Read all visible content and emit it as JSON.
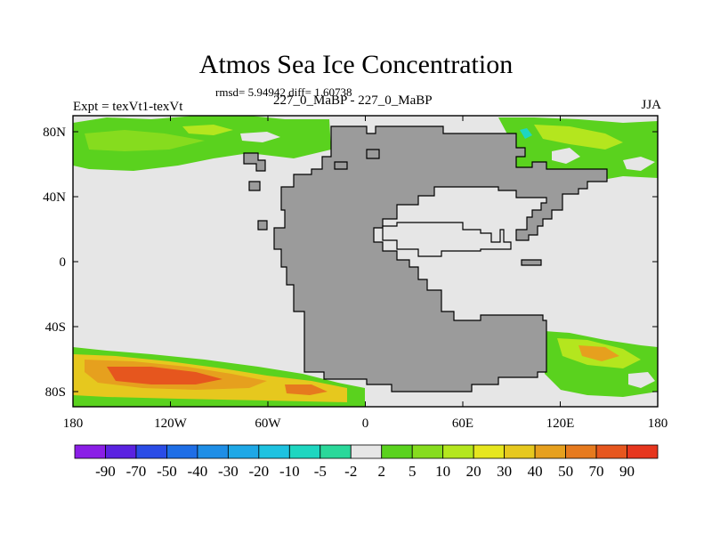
{
  "header": {
    "title": "Atmos Sea Ice Concentration",
    "stats": "rmsd= 5.94942 diff= 1.60738",
    "expt": "Expt = texVt1-texVt",
    "cases": "227_0_MaBP - 227_0_MaBP",
    "season": "JJA"
  },
  "axes": {
    "x_ticks": [
      "180",
      "120W",
      "60W",
      "0",
      "60E",
      "120E",
      "180"
    ],
    "y_ticks": [
      "80N",
      "40N",
      "0",
      "40S",
      "80S"
    ]
  },
  "colorbar": {
    "labels": [
      "-90",
      "-70",
      "-50",
      "-40",
      "-30",
      "-20",
      "-10",
      "-5",
      "-2",
      "2",
      "5",
      "10",
      "20",
      "30",
      "40",
      "50",
      "70",
      "90"
    ],
    "colors": [
      "#8a1ee6",
      "#5a22e0",
      "#2a4ce6",
      "#1e6ee6",
      "#1e8ee6",
      "#1ea8e6",
      "#1ec2e0",
      "#1ed6c0",
      "#2ad89a",
      "#e6e6e6",
      "#5ad21e",
      "#86dc1e",
      "#b4e61e",
      "#e6e61e",
      "#e6c81e",
      "#e6a01e",
      "#e67a1e",
      "#e6561e",
      "#e6361e"
    ]
  },
  "colors": {
    "land": "#9b9b9b",
    "ocean_neutral": "#e6e6e6",
    "positive_low": "#5ad21e",
    "positive_mid": "#b4e61e",
    "positive_high": "#e6a01e",
    "positive_max": "#e6561e",
    "negative_low": "#1ed6c0"
  }
}
